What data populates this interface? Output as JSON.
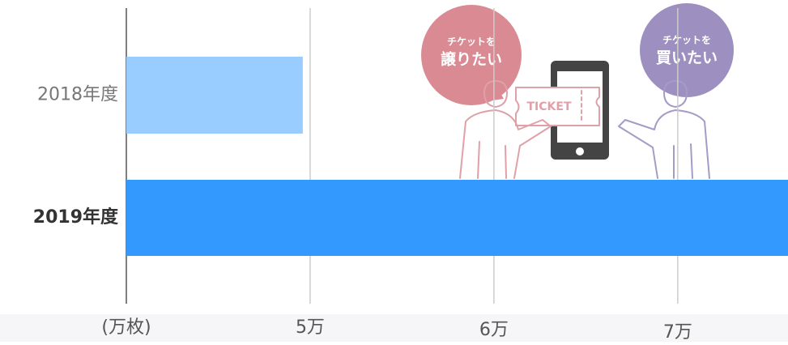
{
  "chart_data": {
    "type": "hbar",
    "categories": [
      "2018年度",
      "2019年度"
    ],
    "values": [
      4.96,
      7.6
    ],
    "colors": [
      "#99ccff",
      "#3399ff"
    ],
    "xlabel": "(万枚)",
    "xlim": [
      4,
      7.6
    ],
    "xticks": [
      {
        "value": 5,
        "label": "5万"
      },
      {
        "value": 6,
        "label": "6万"
      },
      {
        "value": 7,
        "label": "7万"
      }
    ],
    "grid": true,
    "annotations": [
      "チケットを",
      "譲りたい",
      "TICKET",
      "チケットを",
      "買いたい"
    ]
  }
}
